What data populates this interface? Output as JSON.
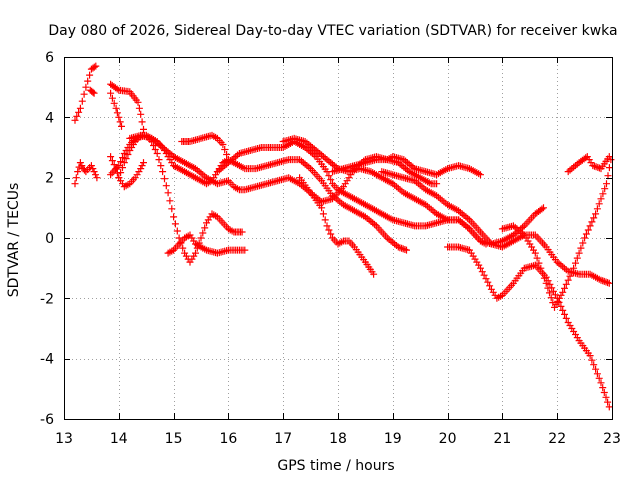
{
  "chart_data": {
    "type": "scatter",
    "title": "Day 080 of 2026, Sidereal Day-to-day VTEC variation (SDTVAR) for receiver kwka",
    "xlabel": "GPS time / hours",
    "ylabel": "SDTVAR / TECUs",
    "xlim": [
      13,
      23
    ],
    "ylim": [
      -6,
      6
    ],
    "xticks": [
      13,
      14,
      15,
      16,
      17,
      18,
      19,
      20,
      21,
      22,
      23
    ],
    "yticks": [
      -6,
      -4,
      -2,
      0,
      2,
      4,
      6
    ],
    "grid": true,
    "marker": "plus",
    "color": "#ff0000",
    "series": [
      {
        "name": "arc-1",
        "points": [
          [
            13.2,
            1.8
          ],
          [
            13.25,
            2.2
          ],
          [
            13.3,
            2.5
          ],
          [
            13.35,
            2.3
          ],
          [
            13.4,
            2.2
          ],
          [
            13.5,
            2.4
          ],
          [
            13.55,
            2.2
          ],
          [
            13.6,
            2.0
          ]
        ]
      },
      {
        "name": "arc-2",
        "points": [
          [
            13.2,
            3.9
          ],
          [
            13.3,
            4.3
          ],
          [
            13.4,
            5.0
          ],
          [
            13.5,
            5.6
          ],
          [
            13.58,
            5.7
          ]
        ]
      },
      {
        "name": "arc-3",
        "points": [
          [
            13.48,
            4.9
          ],
          [
            13.55,
            4.8
          ]
        ]
      },
      {
        "name": "arc-4",
        "points": [
          [
            13.85,
            5.1
          ],
          [
            14.0,
            4.9
          ],
          [
            14.2,
            4.85
          ],
          [
            14.35,
            4.5
          ],
          [
            14.4,
            4.1
          ],
          [
            14.45,
            3.6
          ]
        ]
      },
      {
        "name": "arc-5",
        "points": [
          [
            13.85,
            4.8
          ],
          [
            13.95,
            4.3
          ],
          [
            14.0,
            4.0
          ],
          [
            14.05,
            3.7
          ]
        ]
      },
      {
        "name": "arc-6",
        "points": [
          [
            13.85,
            2.1
          ],
          [
            14.0,
            2.4
          ],
          [
            14.1,
            2.8
          ],
          [
            14.2,
            3.1
          ],
          [
            14.3,
            3.3
          ],
          [
            14.5,
            3.4
          ],
          [
            14.6,
            3.2
          ],
          [
            14.7,
            2.8
          ],
          [
            14.8,
            2.2
          ],
          [
            14.9,
            1.5
          ],
          [
            15.0,
            0.7
          ],
          [
            15.1,
            0.0
          ],
          [
            15.2,
            -0.5
          ],
          [
            15.3,
            -0.8
          ],
          [
            15.4,
            -0.5
          ],
          [
            15.5,
            0.0
          ],
          [
            15.6,
            0.5
          ],
          [
            15.7,
            0.8
          ],
          [
            15.8,
            0.7
          ],
          [
            15.9,
            0.5
          ],
          [
            16.0,
            0.3
          ],
          [
            16.1,
            0.2
          ],
          [
            16.25,
            0.2
          ]
        ]
      },
      {
        "name": "arc-7",
        "points": [
          [
            13.85,
            2.7
          ],
          [
            13.95,
            2.3
          ],
          [
            14.0,
            2.0
          ],
          [
            14.1,
            1.7
          ],
          [
            14.2,
            1.8
          ],
          [
            14.3,
            2.0
          ],
          [
            14.4,
            2.3
          ],
          [
            14.45,
            2.5
          ]
        ]
      },
      {
        "name": "arc-8",
        "points": [
          [
            14.0,
            2.0
          ],
          [
            14.1,
            2.5
          ],
          [
            14.2,
            2.9
          ],
          [
            14.3,
            3.2
          ],
          [
            14.4,
            3.4
          ],
          [
            14.5,
            3.4
          ],
          [
            14.6,
            3.3
          ],
          [
            14.7,
            3.2
          ],
          [
            14.8,
            3.0
          ],
          [
            14.9,
            2.7
          ],
          [
            15.0,
            2.4
          ],
          [
            15.1,
            2.3
          ],
          [
            15.2,
            2.2
          ],
          [
            15.3,
            2.1
          ],
          [
            15.4,
            2.0
          ],
          [
            15.5,
            1.9
          ],
          [
            15.6,
            1.8
          ],
          [
            15.7,
            1.9
          ],
          [
            15.8,
            2.2
          ],
          [
            15.9,
            2.5
          ],
          [
            16.0,
            2.6
          ],
          [
            16.1,
            2.5
          ],
          [
            16.2,
            2.4
          ],
          [
            16.3,
            2.3
          ],
          [
            16.5,
            2.3
          ],
          [
            16.7,
            2.4
          ],
          [
            16.9,
            2.5
          ],
          [
            17.1,
            2.6
          ],
          [
            17.3,
            2.6
          ],
          [
            17.5,
            2.3
          ],
          [
            17.7,
            1.9
          ],
          [
            17.9,
            1.4
          ],
          [
            18.1,
            1.1
          ],
          [
            18.3,
            0.9
          ],
          [
            18.5,
            0.7
          ],
          [
            18.7,
            0.4
          ],
          [
            18.9,
            0.0
          ],
          [
            19.1,
            -0.3
          ],
          [
            19.25,
            -0.4
          ]
        ]
      },
      {
        "name": "arc-9",
        "points": [
          [
            14.2,
            3.3
          ],
          [
            14.4,
            3.4
          ],
          [
            14.6,
            3.3
          ],
          [
            14.8,
            3.0
          ],
          [
            15.0,
            2.7
          ],
          [
            15.2,
            2.5
          ],
          [
            15.4,
            2.3
          ],
          [
            15.6,
            2.0
          ],
          [
            15.8,
            1.8
          ],
          [
            16.0,
            1.9
          ],
          [
            16.1,
            1.7
          ],
          [
            16.2,
            1.6
          ],
          [
            16.3,
            1.6
          ],
          [
            16.5,
            1.7
          ],
          [
            16.7,
            1.8
          ],
          [
            16.9,
            1.9
          ],
          [
            17.1,
            2.0
          ],
          [
            17.3,
            1.8
          ],
          [
            17.5,
            1.5
          ],
          [
            17.7,
            1.0
          ],
          [
            17.8,
            0.4
          ],
          [
            17.9,
            0.0
          ],
          [
            18.0,
            -0.2
          ],
          [
            18.1,
            -0.1
          ],
          [
            18.2,
            -0.1
          ],
          [
            18.3,
            -0.3
          ],
          [
            18.5,
            -0.8
          ],
          [
            18.65,
            -1.2
          ]
        ]
      },
      {
        "name": "arc-10",
        "points": [
          [
            14.9,
            -0.5
          ],
          [
            15.0,
            -0.4
          ],
          [
            15.1,
            -0.2
          ],
          [
            15.2,
            0.0
          ],
          [
            15.3,
            0.1
          ],
          [
            15.4,
            -0.2
          ],
          [
            15.5,
            -0.3
          ],
          [
            15.6,
            -0.4
          ],
          [
            15.8,
            -0.5
          ],
          [
            16.0,
            -0.4
          ],
          [
            16.2,
            -0.4
          ],
          [
            16.3,
            -0.4
          ]
        ]
      },
      {
        "name": "arc-11",
        "points": [
          [
            15.15,
            3.2
          ],
          [
            15.3,
            3.2
          ],
          [
            15.5,
            3.3
          ],
          [
            15.7,
            3.4
          ],
          [
            15.8,
            3.3
          ],
          [
            15.9,
            3.1
          ],
          [
            16.0,
            2.6
          ],
          [
            16.1,
            2.5
          ]
        ]
      },
      {
        "name": "arc-12",
        "points": [
          [
            15.8,
            2.2
          ],
          [
            16.0,
            2.5
          ],
          [
            16.2,
            2.8
          ],
          [
            16.4,
            2.9
          ],
          [
            16.6,
            3.0
          ],
          [
            16.8,
            3.0
          ],
          [
            17.0,
            3.0
          ],
          [
            17.2,
            3.2
          ],
          [
            17.4,
            3.0
          ],
          [
            17.6,
            2.7
          ],
          [
            17.8,
            2.2
          ],
          [
            17.9,
            1.8
          ],
          [
            18.0,
            1.6
          ],
          [
            18.2,
            1.4
          ],
          [
            18.4,
            1.2
          ],
          [
            18.6,
            1.0
          ],
          [
            18.8,
            0.8
          ],
          [
            19.0,
            0.6
          ],
          [
            19.2,
            0.5
          ],
          [
            19.4,
            0.4
          ],
          [
            19.6,
            0.4
          ],
          [
            19.8,
            0.5
          ],
          [
            20.0,
            0.6
          ],
          [
            20.2,
            0.6
          ],
          [
            20.4,
            0.3
          ],
          [
            20.6,
            -0.1
          ],
          [
            20.8,
            -0.2
          ],
          [
            21.0,
            -0.1
          ],
          [
            21.2,
            0.1
          ],
          [
            21.4,
            0.4
          ],
          [
            21.6,
            0.8
          ],
          [
            21.75,
            1.0
          ]
        ]
      },
      {
        "name": "arc-13",
        "points": [
          [
            17.0,
            3.2
          ],
          [
            17.2,
            3.3
          ],
          [
            17.4,
            3.2
          ],
          [
            17.6,
            2.9
          ],
          [
            17.8,
            2.6
          ],
          [
            18.0,
            2.3
          ],
          [
            18.2,
            2.2
          ],
          [
            18.4,
            2.3
          ],
          [
            18.6,
            2.2
          ],
          [
            18.8,
            2.0
          ],
          [
            19.0,
            1.8
          ],
          [
            19.2,
            1.5
          ],
          [
            19.4,
            1.3
          ],
          [
            19.6,
            1.1
          ],
          [
            19.8,
            0.8
          ],
          [
            20.0,
            0.6
          ],
          [
            20.2,
            0.6
          ],
          [
            20.4,
            0.3
          ],
          [
            20.6,
            -0.1
          ],
          [
            20.7,
            -0.2
          ]
        ]
      },
      {
        "name": "arc-14",
        "points": [
          [
            17.3,
            2.0
          ],
          [
            17.5,
            1.5
          ],
          [
            17.7,
            1.2
          ],
          [
            17.9,
            1.3
          ],
          [
            18.1,
            1.7
          ],
          [
            18.3,
            2.3
          ],
          [
            18.5,
            2.6
          ],
          [
            18.7,
            2.7
          ],
          [
            18.9,
            2.6
          ],
          [
            19.1,
            2.5
          ],
          [
            19.3,
            2.2
          ],
          [
            19.5,
            2.0
          ],
          [
            19.7,
            1.8
          ],
          [
            19.8,
            1.8
          ]
        ]
      },
      {
        "name": "arc-15",
        "points": [
          [
            17.9,
            2.2
          ],
          [
            18.1,
            2.3
          ],
          [
            18.3,
            2.4
          ],
          [
            18.5,
            2.5
          ],
          [
            18.7,
            2.6
          ],
          [
            18.9,
            2.6
          ],
          [
            19.0,
            2.7
          ],
          [
            19.2,
            2.6
          ],
          [
            19.4,
            2.3
          ],
          [
            19.6,
            2.2
          ],
          [
            19.8,
            2.1
          ],
          [
            20.0,
            2.3
          ],
          [
            20.2,
            2.4
          ],
          [
            20.4,
            2.3
          ],
          [
            20.6,
            2.1
          ]
        ]
      },
      {
        "name": "arc-16",
        "points": [
          [
            18.8,
            2.2
          ],
          [
            19.0,
            2.1
          ],
          [
            19.2,
            2.0
          ],
          [
            19.4,
            1.9
          ],
          [
            19.6,
            1.6
          ],
          [
            19.8,
            1.4
          ],
          [
            20.0,
            1.1
          ],
          [
            20.2,
            0.9
          ],
          [
            20.4,
            0.6
          ],
          [
            20.6,
            0.2
          ],
          [
            20.8,
            -0.2
          ],
          [
            21.0,
            -0.3
          ],
          [
            21.2,
            -0.1
          ],
          [
            21.4,
            0.1
          ],
          [
            21.6,
            0.1
          ],
          [
            21.8,
            -0.3
          ],
          [
            22.0,
            -0.8
          ],
          [
            22.2,
            -1.1
          ],
          [
            22.4,
            -1.2
          ],
          [
            22.6,
            -1.2
          ],
          [
            22.8,
            -1.4
          ],
          [
            22.95,
            -1.5
          ]
        ]
      },
      {
        "name": "arc-17",
        "points": [
          [
            20.0,
            -0.3
          ],
          [
            20.2,
            -0.3
          ],
          [
            20.4,
            -0.4
          ],
          [
            20.6,
            -1.0
          ],
          [
            20.8,
            -1.7
          ],
          [
            20.9,
            -2.0
          ],
          [
            21.0,
            -1.9
          ],
          [
            21.2,
            -1.5
          ],
          [
            21.4,
            -1.0
          ],
          [
            21.6,
            -0.9
          ],
          [
            21.8,
            -1.3
          ],
          [
            22.0,
            -2.0
          ],
          [
            22.2,
            -2.8
          ],
          [
            22.4,
            -3.4
          ],
          [
            22.6,
            -3.9
          ],
          [
            22.8,
            -4.8
          ],
          [
            22.95,
            -5.6
          ]
        ]
      },
      {
        "name": "arc-18",
        "points": [
          [
            21.0,
            0.3
          ],
          [
            21.2,
            0.4
          ],
          [
            21.4,
            0.1
          ],
          [
            21.6,
            -0.5
          ],
          [
            21.8,
            -1.5
          ],
          [
            21.95,
            -2.3
          ],
          [
            22.1,
            -1.8
          ],
          [
            22.3,
            -1.0
          ],
          [
            22.5,
            0.0
          ],
          [
            22.7,
            0.8
          ],
          [
            22.9,
            1.8
          ],
          [
            22.98,
            2.6
          ]
        ]
      },
      {
        "name": "arc-19",
        "points": [
          [
            22.2,
            2.2
          ],
          [
            22.4,
            2.5
          ],
          [
            22.55,
            2.7
          ],
          [
            22.65,
            2.4
          ],
          [
            22.8,
            2.3
          ],
          [
            22.95,
            2.7
          ]
        ]
      }
    ]
  }
}
